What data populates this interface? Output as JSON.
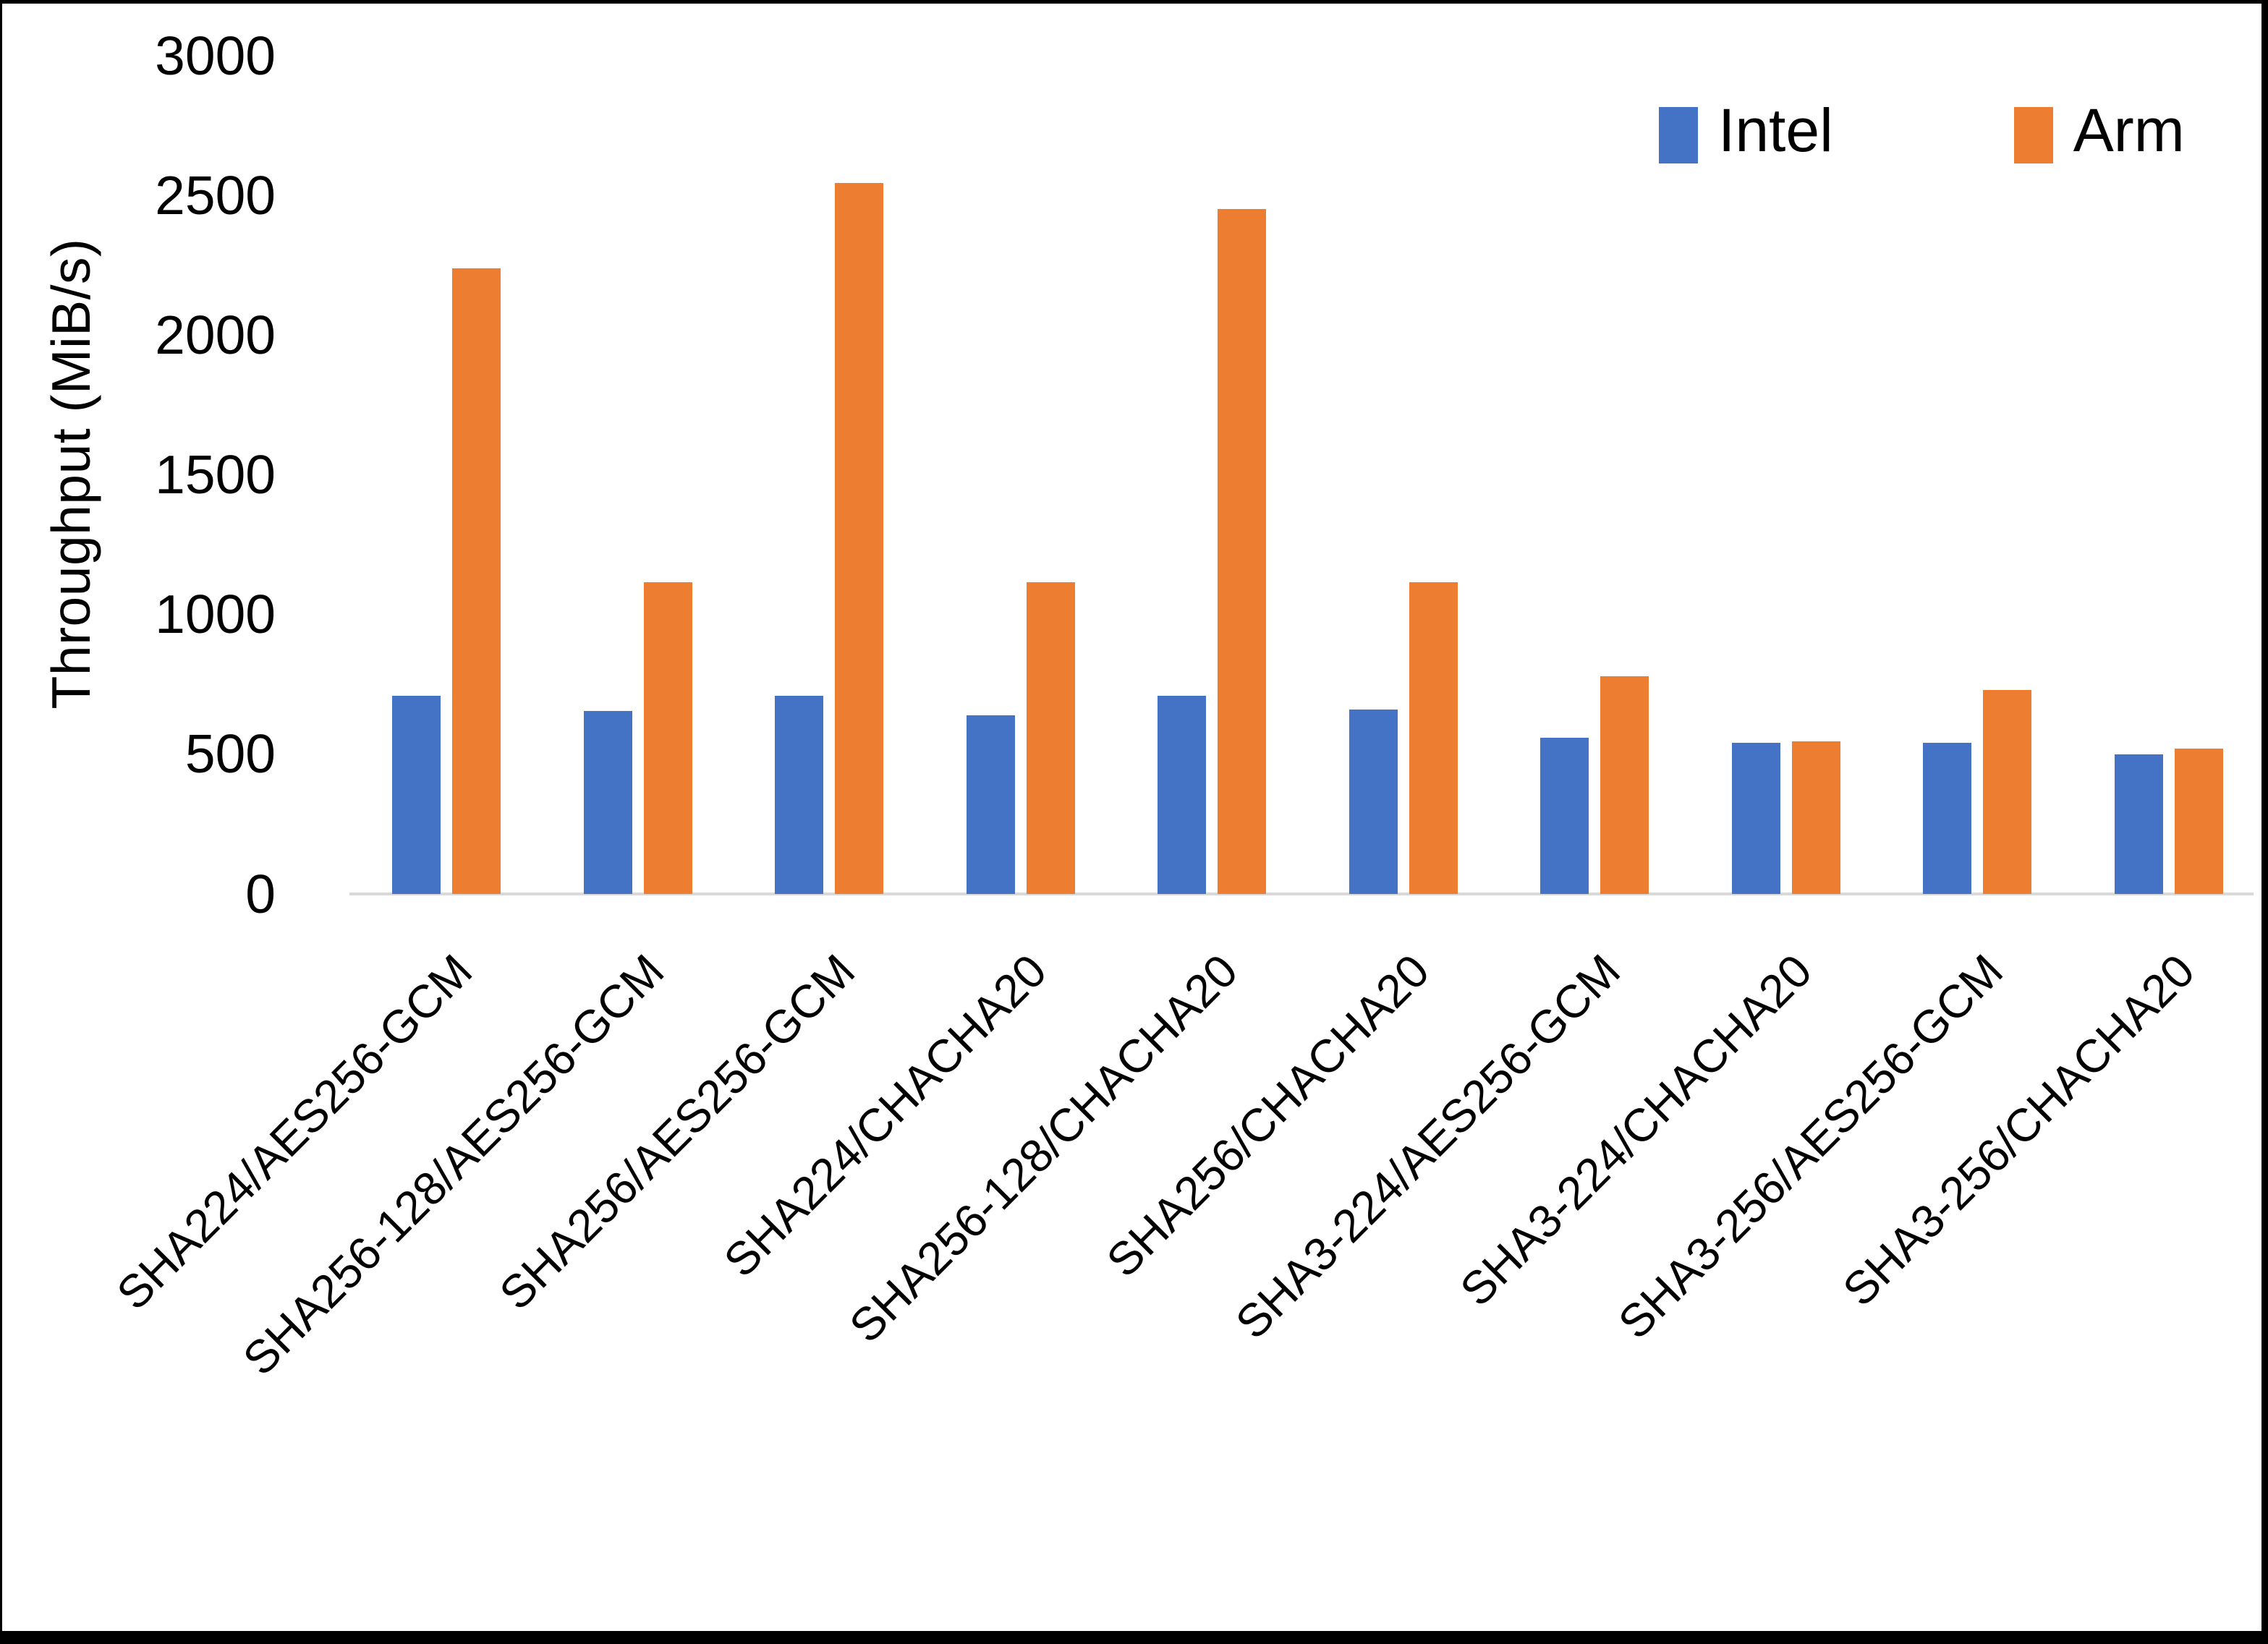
{
  "chart_data": {
    "type": "bar",
    "title": "",
    "xlabel": "",
    "ylabel": "Throughput (MiB/s)",
    "ylim": [
      0,
      3000
    ],
    "yticks": [
      0,
      500,
      1000,
      1500,
      2000,
      2500,
      3000
    ],
    "grid": false,
    "legend_position": "top-right",
    "axis_line_color": "#d9d9d9",
    "text_color": "#000000",
    "categories": [
      "SHA224/AES256-GCM",
      "SHA256-128/AES256-GCM",
      "SHA256/AES256-GCM",
      "SHA224/CHACHA20",
      "SHA256-128/CHACHA20",
      "SHA256/CHACHA20",
      "SHA3-224/AES256-GCM",
      "SHA3-224/CHACHA20",
      "SHA3-256/AES256-GCM",
      "SHA3-256/CHACHA20"
    ],
    "series": [
      {
        "name": "Intel",
        "color": "#4472C4",
        "values": [
          710,
          655,
          710,
          640,
          710,
          660,
          560,
          540,
          540,
          500
        ]
      },
      {
        "name": "Arm",
        "color": "#ED7D31",
        "values": [
          2240,
          1115,
          2545,
          1115,
          2450,
          1115,
          780,
          545,
          730,
          520
        ]
      }
    ]
  }
}
